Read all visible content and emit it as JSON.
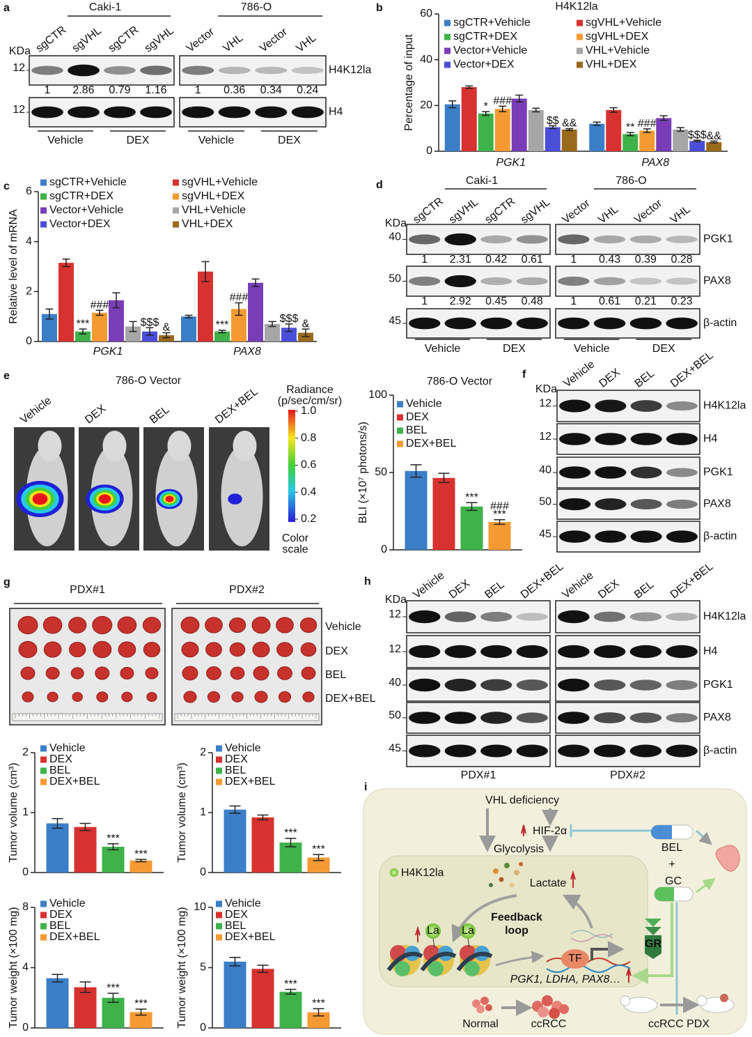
{
  "panel_labels": [
    "a",
    "b",
    "c",
    "d",
    "e",
    "f",
    "g",
    "h",
    "i"
  ],
  "blot_a": {
    "groups": [
      {
        "title": "Caki-1",
        "lanes": [
          "sgCTR",
          "sgVHL",
          "sgCTR",
          "sgVHL"
        ],
        "treatments": [
          "Vehicle",
          "DEX"
        ]
      },
      {
        "title": "786-O",
        "lanes": [
          "Vector",
          "VHL",
          "Vector",
          "VHL"
        ],
        "treatments": [
          "Vehicle",
          "DEX"
        ]
      }
    ],
    "kda_unit": "KDa",
    "rows": [
      {
        "kda": 12,
        "name": "H4K12la",
        "quant": [
          1,
          2.86,
          0.79,
          1.16,
          1,
          0.36,
          0.34,
          0.24
        ]
      },
      {
        "kda": 12,
        "name": "H4"
      }
    ]
  },
  "blot_d": {
    "groups": [
      {
        "title": "Caki-1",
        "lanes": [
          "sgCTR",
          "sgVHL",
          "sgCTR",
          "sgVHL"
        ],
        "treatments": [
          "Vehicle",
          "DEX"
        ]
      },
      {
        "title": "786-O",
        "lanes": [
          "Vector",
          "VHL",
          "Vector",
          "VHL"
        ],
        "treatments": [
          "Vehicle",
          "DEX"
        ]
      }
    ],
    "kda_unit": "KDa",
    "rows": [
      {
        "kda": 40,
        "name": "PGK1",
        "quant": [
          1,
          2.31,
          0.42,
          0.61,
          1,
          0.43,
          0.39,
          0.28
        ]
      },
      {
        "kda": 50,
        "name": "PAX8",
        "quant": [
          1,
          2.92,
          0.45,
          0.48,
          1,
          0.61,
          0.21,
          0.23
        ]
      },
      {
        "kda": 45,
        "name": "β-actin"
      }
    ]
  },
  "blot_f": {
    "groups": [
      {
        "lanes": [
          "Vehicle",
          "DEX",
          "BEL",
          "DEX+BEL"
        ]
      }
    ],
    "kda_unit": "KDa",
    "rows": [
      {
        "kda": 12,
        "name": "H4K12la"
      },
      {
        "kda": 12,
        "name": "H4"
      },
      {
        "kda": 40,
        "name": "PGK1"
      },
      {
        "kda": 50,
        "name": "PAX8"
      },
      {
        "kda": 45,
        "name": "β-actin"
      }
    ]
  },
  "blot_h": {
    "groups": [
      {
        "title": "PDX#1",
        "lanes": [
          "Vehicle",
          "DEX",
          "BEL",
          "DEX+BEL"
        ]
      },
      {
        "title": "PDX#2",
        "lanes": [
          "Vehicle",
          "DEX",
          "BEL",
          "DEX+BEL"
        ]
      }
    ],
    "kda_unit": "KDa",
    "rows": [
      {
        "kda": 12,
        "name": "H4K12la"
      },
      {
        "kda": 12,
        "name": "H4"
      },
      {
        "kda": 40,
        "name": "PGK1"
      },
      {
        "kda": 50,
        "name": "PAX8"
      },
      {
        "kda": 45,
        "name": "β-actin"
      }
    ]
  },
  "imaging": {
    "title": "786-O Vector",
    "lanes": [
      "Vehicle",
      "DEX",
      "BEL",
      "DEX+BEL"
    ],
    "colorbar": {
      "label": [
        "Radiance",
        "(p/sec/cm/sr)"
      ],
      "lim": [
        0.2,
        1
      ],
      "ticks": [
        {
          "value": 1,
          "label": "1.0"
        },
        0.8,
        0.6,
        0.4,
        0.2
      ],
      "scale_label": [
        "Color",
        "scale"
      ]
    }
  },
  "tumor_photo": {
    "groups": [
      "PDX#1",
      "PDX#2"
    ],
    "rows": [
      "Vehicle",
      "DEX",
      "BEL",
      "DEX+BEL"
    ]
  },
  "diagram": {
    "vhl": "VHL deficiency",
    "hif": "HIF-2α",
    "glycolysis": "Glycolysis",
    "h4k12la": "H4K12la",
    "lactate": "Lactate",
    "feedback": [
      "Feedback",
      "loop"
    ],
    "la": "La",
    "tf": "TF",
    "genes": "PGK1, LDHA, PAX8…",
    "bel": "BEL",
    "plus": "+",
    "gc": "GC",
    "gr": "GR",
    "normal": "Normal",
    "ccrcc": "ccRCC",
    "pdx": "ccRCC PDX"
  },
  "chart_data": [
    {
      "type": "bar",
      "title": "H4K12la",
      "y_label": "Percentage of input",
      "categories": [
        "PGK1",
        "PAX8"
      ],
      "ylim": [
        0,
        60
      ],
      "yticks": [
        0,
        20,
        40,
        60
      ],
      "series": [
        {
          "name": "sgCTR+Vehicle",
          "color": "#3b7ec8",
          "values": [
            20.5,
            12
          ],
          "errors": [
            1.5,
            0.7
          ]
        },
        {
          "name": "sgVHL+Vehicle",
          "color": "#d7322f",
          "values": [
            28,
            18
          ],
          "errors": [
            0.5,
            1
          ]
        },
        {
          "name": "sgCTR+DEX",
          "color": "#3fb24a",
          "values": [
            16.5,
            7.5
          ],
          "errors": [
            0.8,
            0.7
          ],
          "labels": [
            [
              "*"
            ],
            [
              "**"
            ]
          ]
        },
        {
          "name": "sgVHL+DEX",
          "color": "#f59a33",
          "values": [
            18.5,
            9
          ],
          "errors": [
            1.2,
            0.8
          ],
          "labels": [
            [
              "###"
            ],
            [
              "###"
            ]
          ]
        },
        {
          "name": "Vector+Vehicle",
          "color": "#7a3db8",
          "values": [
            23,
            14.5
          ],
          "errors": [
            1.5,
            1
          ]
        },
        {
          "name": "VHL+Vehicle",
          "color": "#a6a6a6",
          "values": [
            18,
            9.5
          ],
          "errors": [
            0.8,
            0.8
          ]
        },
        {
          "name": "Vector+DEX",
          "color": "#4b4fd8",
          "values": [
            10.5,
            4.5
          ],
          "errors": [
            0.6,
            0.3
          ],
          "labels": [
            [
              "$$"
            ],
            [
              "$$$"
            ]
          ]
        },
        {
          "name": "VHL+DEX",
          "color": "#9a6a1c",
          "values": [
            9.5,
            4
          ],
          "errors": [
            0.4,
            0.4
          ],
          "labels": [
            [
              "&&"
            ],
            [
              "&&"
            ]
          ]
        }
      ]
    },
    {
      "type": "bar",
      "y_label": "Relative level of mRNA",
      "categories": [
        "PGK1",
        "PAX8"
      ],
      "ylim": [
        0,
        6
      ],
      "yticks": [
        0,
        2,
        4,
        6
      ],
      "series": [
        {
          "name": "sgCTR+Vehicle",
          "color": "#3b7ec8",
          "values": [
            1.1,
            1.0
          ],
          "errors": [
            0.2,
            0.05
          ]
        },
        {
          "name": "sgVHL+Vehicle",
          "color": "#d7322f",
          "values": [
            3.15,
            2.8
          ],
          "errors": [
            0.15,
            0.4
          ]
        },
        {
          "name": "sgCTR+DEX",
          "color": "#3fb24a",
          "values": [
            0.4,
            0.4
          ],
          "errors": [
            0.1,
            0.05
          ],
          "labels": [
            [
              "***"
            ],
            [
              "***"
            ]
          ]
        },
        {
          "name": "sgVHL+DEX",
          "color": "#f59a33",
          "values": [
            1.15,
            1.3
          ],
          "errors": [
            0.1,
            0.25
          ],
          "labels": [
            [
              "###"
            ],
            [
              "###"
            ]
          ]
        },
        {
          "name": "Vector+Vehicle",
          "color": "#7a3db8",
          "values": [
            1.65,
            2.35
          ],
          "errors": [
            0.3,
            0.15
          ]
        },
        {
          "name": "VHL+Vehicle",
          "color": "#a6a6a6",
          "values": [
            0.6,
            0.7
          ],
          "errors": [
            0.2,
            0.1
          ]
        },
        {
          "name": "Vector+DEX",
          "color": "#4b4fd8",
          "values": [
            0.4,
            0.55
          ],
          "errors": [
            0.15,
            0.15
          ],
          "labels": [
            [
              "$$$"
            ],
            [
              "$$$"
            ]
          ]
        },
        {
          "name": "VHL+DEX",
          "color": "#9a6a1c",
          "values": [
            0.25,
            0.35
          ],
          "errors": [
            0.1,
            0.15
          ],
          "labels": [
            [
              "&"
            ],
            [
              "&"
            ]
          ]
        }
      ]
    },
    {
      "type": "bar",
      "title": "786-O Vector",
      "y_label": "BLI (×10⁷ photons/s)",
      "categories": [
        null
      ],
      "ylim": [
        0,
        100
      ],
      "yticks": [
        0,
        50,
        100
      ],
      "series": [
        {
          "name": "Vehicle",
          "color": "#3b7ec8",
          "values": [
            51
          ],
          "errors": [
            4
          ]
        },
        {
          "name": "DEX",
          "color": "#d7322f",
          "values": [
            46.5
          ],
          "errors": [
            3
          ]
        },
        {
          "name": "BEL",
          "color": "#3fb24a",
          "values": [
            28
          ],
          "errors": [
            2.5
          ],
          "labels": [
            [
              "***"
            ]
          ]
        },
        {
          "name": "DEX+BEL",
          "color": "#f59a33",
          "values": [
            18
          ],
          "errors": [
            1.5
          ],
          "labels": [
            [
              "###",
              "***"
            ]
          ]
        }
      ]
    },
    {
      "type": "bar",
      "y_label": "Tumor volume (cm³)",
      "categories": [
        null
      ],
      "ylim": [
        0,
        2
      ],
      "yticks": [
        0,
        1,
        2
      ],
      "series": [
        {
          "name": "Vehicle",
          "color": "#3b7ec8",
          "values": [
            0.82
          ],
          "errors": [
            0.08
          ]
        },
        {
          "name": "DEX",
          "color": "#d7322f",
          "values": [
            0.76
          ],
          "errors": [
            0.06
          ]
        },
        {
          "name": "BEL",
          "color": "#3fb24a",
          "values": [
            0.43
          ],
          "errors": [
            0.05
          ],
          "labels": [
            [
              "***"
            ]
          ]
        },
        {
          "name": "DEX+BEL",
          "color": "#f59a33",
          "values": [
            0.2
          ],
          "errors": [
            0.02
          ],
          "labels": [
            [
              "***"
            ]
          ]
        }
      ]
    },
    {
      "type": "bar",
      "y_label": "Tumor volume (cm³)",
      "categories": [
        null
      ],
      "ylim": [
        0,
        2
      ],
      "yticks": [
        0,
        1,
        2
      ],
      "series": [
        {
          "name": "Vehicle",
          "color": "#3b7ec8",
          "values": [
            1.05
          ],
          "errors": [
            0.06
          ]
        },
        {
          "name": "DEX",
          "color": "#d7322f",
          "values": [
            0.92
          ],
          "errors": [
            0.04
          ]
        },
        {
          "name": "BEL",
          "color": "#3fb24a",
          "values": [
            0.5
          ],
          "errors": [
            0.07
          ],
          "labels": [
            [
              "***"
            ]
          ]
        },
        {
          "name": "DEX+BEL",
          "color": "#f59a33",
          "values": [
            0.25
          ],
          "errors": [
            0.05
          ],
          "labels": [
            [
              "***"
            ]
          ]
        }
      ]
    },
    {
      "type": "bar",
      "y_label": "Tumor weight (×100 mg)",
      "categories": [
        null
      ],
      "ylim": [
        0,
        8
      ],
      "yticks": [
        0,
        4,
        8
      ],
      "series": [
        {
          "name": "Vehicle",
          "color": "#3b7ec8",
          "values": [
            3.3
          ],
          "errors": [
            0.25
          ]
        },
        {
          "name": "DEX",
          "color": "#d7322f",
          "values": [
            2.7
          ],
          "errors": [
            0.35
          ]
        },
        {
          "name": "BEL",
          "color": "#3fb24a",
          "values": [
            2.0
          ],
          "errors": [
            0.3
          ],
          "labels": [
            [
              "***"
            ]
          ]
        },
        {
          "name": "DEX+BEL",
          "color": "#f59a33",
          "values": [
            1.05
          ],
          "errors": [
            0.2
          ],
          "labels": [
            [
              "***"
            ]
          ]
        }
      ]
    },
    {
      "type": "bar",
      "y_label": "Tumor weight (×100 mg)",
      "categories": [
        null
      ],
      "ylim": [
        0,
        10
      ],
      "yticks": [
        0,
        5,
        10
      ],
      "series": [
        {
          "name": "Vehicle",
          "color": "#3b7ec8",
          "values": [
            5.5
          ],
          "errors": [
            0.35
          ]
        },
        {
          "name": "DEX",
          "color": "#d7322f",
          "values": [
            4.9
          ],
          "errors": [
            0.3
          ]
        },
        {
          "name": "BEL",
          "color": "#3fb24a",
          "values": [
            3.0
          ],
          "errors": [
            0.2
          ],
          "labels": [
            [
              "***"
            ]
          ]
        },
        {
          "name": "DEX+BEL",
          "color": "#f59a33",
          "values": [
            1.3
          ],
          "errors": [
            0.3
          ],
          "labels": [
            [
              "***"
            ]
          ]
        }
      ]
    }
  ]
}
